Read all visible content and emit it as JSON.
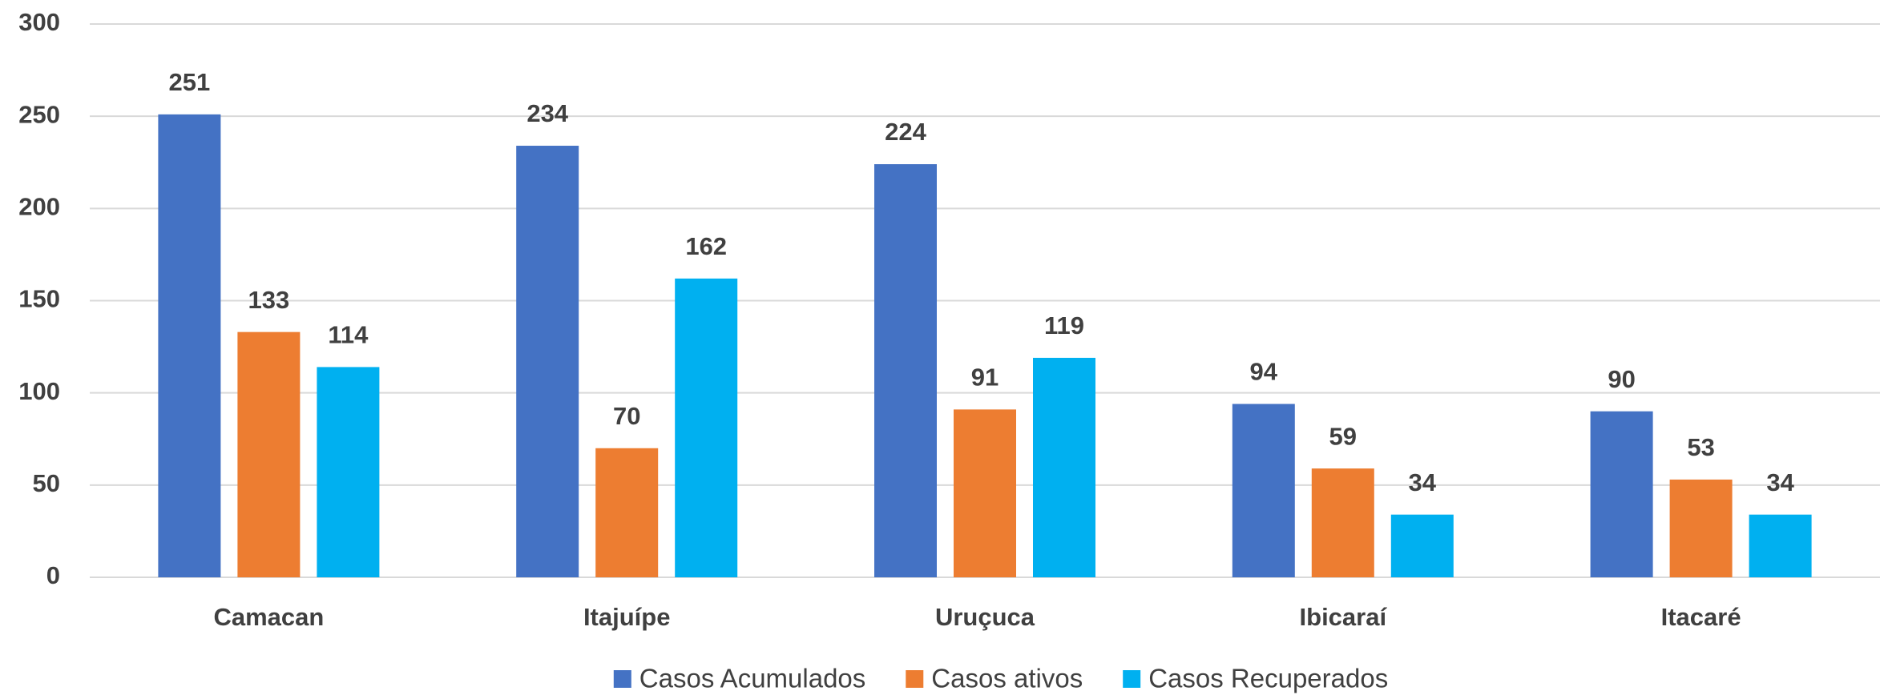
{
  "chart_data": {
    "type": "bar",
    "categories": [
      "Camacan",
      "Itajuípe",
      "Uruçuca",
      "Ibicaraí",
      "Itacaré"
    ],
    "series": [
      {
        "name": "Casos Acumulados",
        "color": "#4472c4",
        "values": [
          251,
          234,
          224,
          94,
          90
        ]
      },
      {
        "name": "Casos ativos",
        "color": "#ed7d31",
        "values": [
          133,
          70,
          91,
          59,
          53
        ]
      },
      {
        "name": "Casos Recuperados",
        "color": "#00b0f0",
        "values": [
          114,
          162,
          119,
          34,
          34
        ]
      }
    ],
    "ylim": [
      0,
      300
    ],
    "yticks": [
      0,
      50,
      100,
      150,
      200,
      250,
      300
    ],
    "grid": true,
    "legend": "bottom"
  }
}
